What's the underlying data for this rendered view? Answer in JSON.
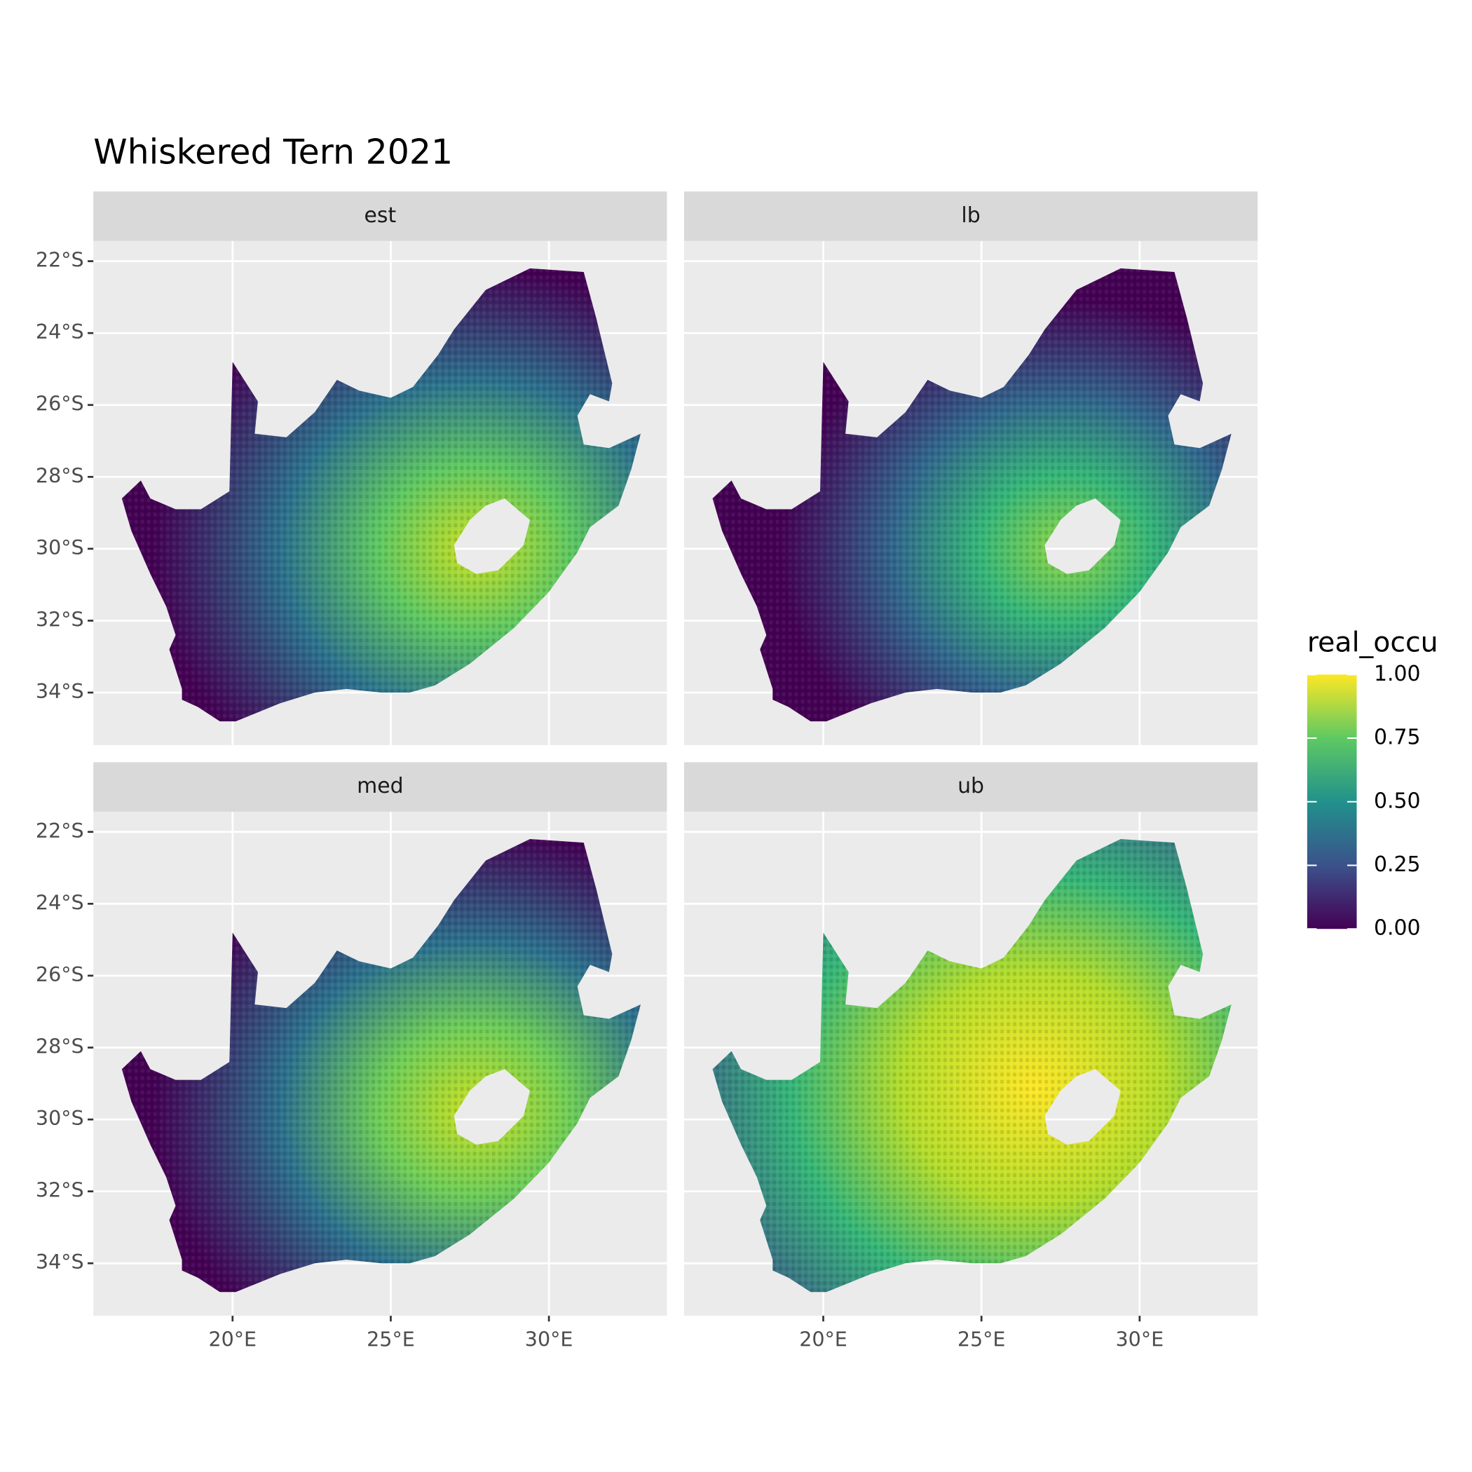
{
  "chart_data": {
    "type": "map",
    "title": "Whiskered Tern 2021",
    "facets": [
      "est",
      "lb",
      "med",
      "ub"
    ],
    "xlim": [
      15.6,
      33.73
    ],
    "ylim": [
      -35.46,
      -21.44
    ],
    "xticks": [
      {
        "value": 20,
        "label": "20°E"
      },
      {
        "value": 25,
        "label": "25°E"
      },
      {
        "value": 30,
        "label": "30°E"
      }
    ],
    "yticks": [
      {
        "value": -22,
        "label": "22°S"
      },
      {
        "value": -24,
        "label": "24°S"
      },
      {
        "value": -26,
        "label": "26°S"
      },
      {
        "value": -28,
        "label": "28°S"
      },
      {
        "value": -30,
        "label": "30°S"
      },
      {
        "value": -32,
        "label": "32°S"
      },
      {
        "value": -34,
        "label": "34°S"
      }
    ],
    "grid": true,
    "legend": {
      "title": "real_occu",
      "position": "right",
      "colors": [
        "#440154",
        "#3b528b",
        "#21918c",
        "#5ec962",
        "#fde725"
      ],
      "lim": [
        0,
        1
      ],
      "ticks": [
        {
          "value": 0,
          "label": "0.00"
        },
        {
          "value": 0.25,
          "label": "0.25"
        },
        {
          "value": 0.5,
          "label": "0.50"
        },
        {
          "value": 0.75,
          "label": "0.75"
        },
        {
          "value": 1,
          "label": "1.00"
        }
      ]
    }
  }
}
